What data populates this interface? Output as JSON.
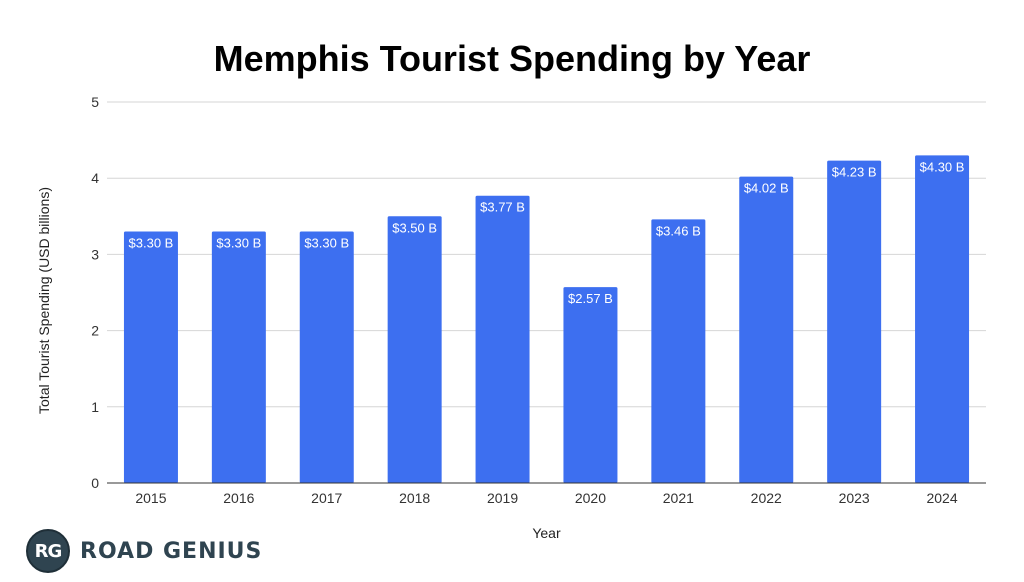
{
  "chart_data": {
    "type": "bar",
    "title": "Memphis Tourist Spending by Year",
    "xlabel": "Year",
    "ylabel": "Total Tourist Spending (USD billions)",
    "categories": [
      "2015",
      "2016",
      "2017",
      "2018",
      "2019",
      "2020",
      "2021",
      "2022",
      "2023",
      "2024"
    ],
    "values": [
      3.3,
      3.3,
      3.3,
      3.5,
      3.77,
      2.57,
      3.46,
      4.02,
      4.23,
      4.3
    ],
    "data_labels": [
      "$3.30 B",
      "$3.30 B",
      "$3.30 B",
      "$3.50 B",
      "$3.77 B",
      "$2.57 B",
      "$3.46 B",
      "$4.02 B",
      "$4.23 B",
      "$4.30 B"
    ],
    "ylim": [
      0,
      5
    ],
    "yticks": [
      "0",
      "1",
      "2",
      "3",
      "4",
      "5"
    ],
    "grid": true,
    "bar_color": "#3d6ff0"
  },
  "branding": {
    "logo_text": "RG",
    "name": "ROAD GENIUS"
  }
}
